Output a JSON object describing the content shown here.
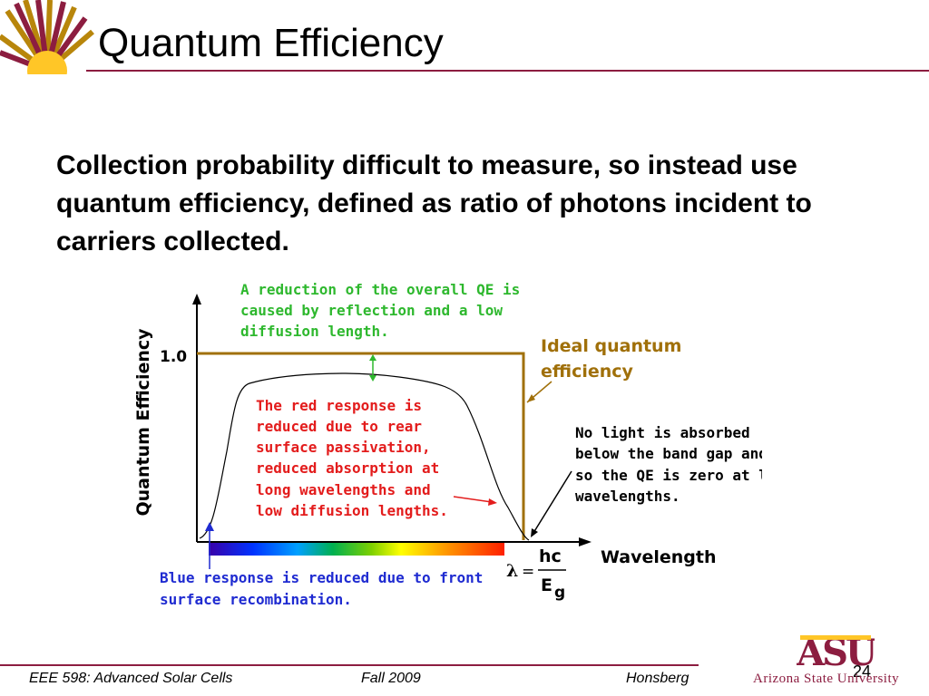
{
  "title": "Quantum Efficiency",
  "body": "Collection probability difficult to measure, so instead use quantum efficiency, defined as ratio of photons incident to carriers collected.",
  "diagram": {
    "y_axis_label": "Quantum Efficiency",
    "y_tick_label": "1.0",
    "x_axis_label": "Wavelength",
    "annotations": {
      "reduction": [
        "A reduction of the overall QE is",
        "caused by reflection and a low",
        "diffusion length."
      ],
      "ideal": [
        "Ideal quantum",
        "efficiency"
      ],
      "red_response": [
        "The red response is",
        "reduced due to rear",
        "surface passivation,",
        "reduced absorption at",
        "long wavelengths and",
        "low diffusion lengths."
      ],
      "no_light": [
        "No light  is absorbed",
        "below the band gap and",
        "so the QE is zero at  long",
        "wavelengths."
      ],
      "blue_response": [
        "Blue response is reduced due to front",
        "surface recombination."
      ]
    },
    "formula": {
      "lambda": "λ",
      "equals": "=",
      "numerator": "hc",
      "denominator_base": "E",
      "denominator_sub": "g"
    },
    "colors": {
      "green": "#2eb82e",
      "red": "#e31c1c",
      "blue": "#1f2bd1",
      "brown": "#a0700a",
      "black": "#000000"
    }
  },
  "footer": {
    "course": "EEE 598: Advanced Solar Cells",
    "term": "Fall 2009",
    "author": "Honsberg",
    "page_number": "24",
    "institution": "Arizona State University",
    "logo_text": "ASU"
  }
}
